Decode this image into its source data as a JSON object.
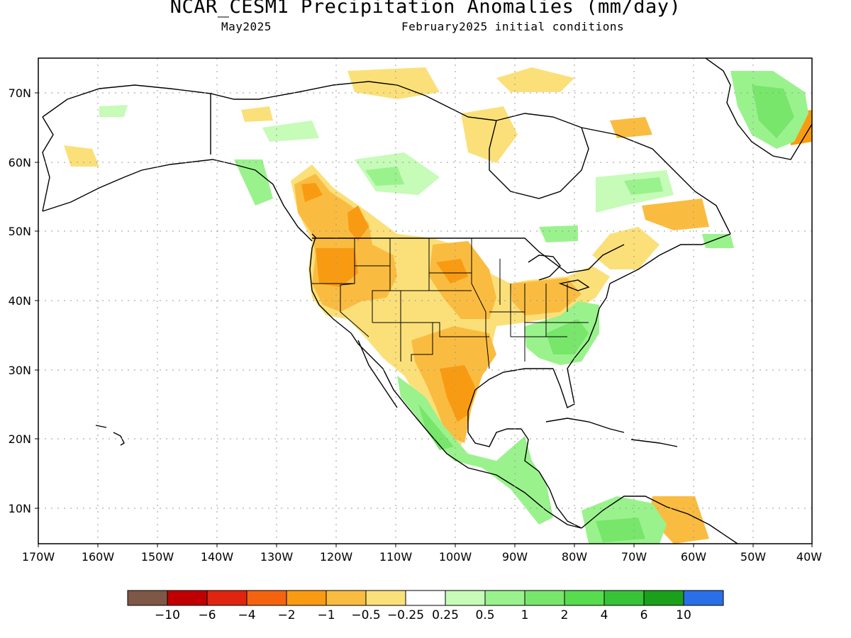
{
  "title": "NCAR_CESM1 Precipitation Anomalies (mm/day)",
  "subtitle_left": "May2025",
  "subtitle_right": "February2025 initial conditions",
  "lat_ticks": [
    "70N",
    "60N",
    "50N",
    "40N",
    "30N",
    "20N",
    "10N"
  ],
  "lon_ticks": [
    "170W",
    "160W",
    "150W",
    "140W",
    "130W",
    "120W",
    "110W",
    "100W",
    "90W",
    "80W",
    "70W",
    "60W",
    "50W",
    "40W"
  ],
  "colorbar": {
    "colors": [
      "#7f5747",
      "#c00000",
      "#e02410",
      "#f5630f",
      "#f99b12",
      "#fabc40",
      "#fbe07a",
      "#ffffff",
      "#c6fbb8",
      "#9af28d",
      "#77e66b",
      "#56dc4d",
      "#36c436",
      "#1ba01b",
      "#2a6fe8"
    ],
    "labels": [
      "−10",
      "−6",
      "−4",
      "−2",
      "−1",
      "−0.5",
      "−0.25",
      "0.25",
      "0.5",
      "1",
      "2",
      "4",
      "6",
      "10"
    ]
  },
  "legend_meaning": {
    "dry_colors": "brown/red/orange/yellow = negative anomaly",
    "wet_colors": "green/blue = positive anomaly"
  },
  "map_features": {
    "dry_regions": [
      "Western US",
      "Northern Plains",
      "Texas",
      "Northern Mexico",
      "Ohio Valley",
      "Southern Quebec",
      "Western Canada",
      "Northern Venezuela"
    ],
    "wet_regions": [
      "Southeast US",
      "Western Mexico",
      "Central America",
      "Colombia",
      "Greenland",
      "Hudson Bay area",
      "Labrador",
      "Alaska interior"
    ]
  }
}
